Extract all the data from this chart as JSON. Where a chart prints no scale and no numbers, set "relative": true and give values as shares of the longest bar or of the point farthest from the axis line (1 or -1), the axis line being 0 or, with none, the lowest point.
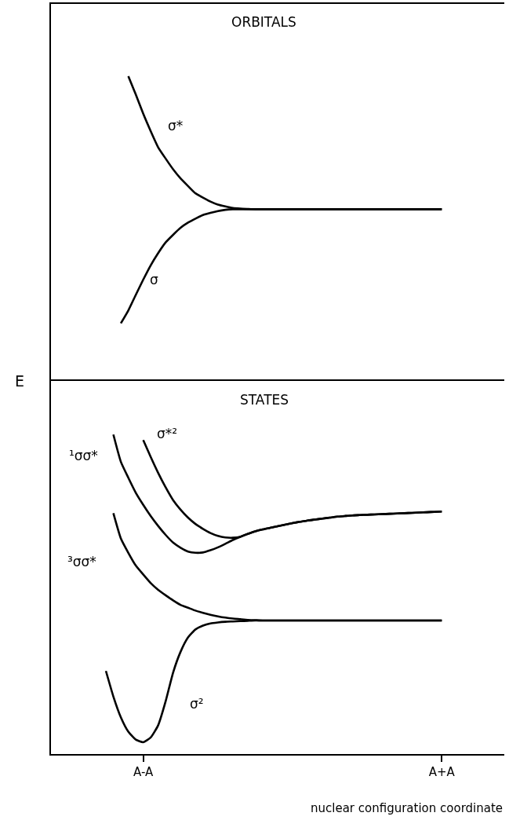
{
  "chart_data": [
    {
      "type": "line",
      "title": "ORBITALS",
      "relative": true,
      "categories": [
        null,
        null,
        null,
        null,
        null,
        null,
        null,
        null,
        null,
        null,
        null,
        null,
        null,
        null,
        null,
        null,
        null,
        null,
        null,
        null,
        null,
        null,
        null,
        null,
        null,
        null,
        null,
        null,
        null,
        null,
        null,
        null,
        null,
        null,
        null,
        null,
        null,
        null,
        null,
        null,
        null,
        null,
        null,
        null,
        null,
        null
      ],
      "series": [
        {
          "name": "σ*",
          "color": "#000000",
          "values": [
            null,
            null,
            null,
            1.0,
            0.94,
            0.877,
            0.82,
            0.767,
            0.73,
            0.695,
            0.665,
            0.64,
            0.616,
            0.602,
            0.589,
            0.579,
            0.573,
            0.568,
            0.566,
            0.565,
            0.564,
            0.564,
            0.564,
            0.564,
            0.564,
            0.564,
            0.564,
            0.564,
            0.564,
            0.564,
            0.564,
            0.564,
            0.564,
            0.564,
            0.564,
            0.564,
            0.564,
            0.564,
            0.564,
            0.564,
            0.564,
            0.564,
            0.564,
            0.564,
            0.564,
            0.564
          ]
        },
        {
          "name": "σ",
          "color": "#000000",
          "values": [
            null,
            null,
            0.19,
            0.232,
            0.283,
            0.333,
            0.38,
            0.42,
            0.455,
            0.48,
            0.503,
            0.52,
            0.533,
            0.545,
            0.552,
            0.558,
            0.562,
            0.564,
            0.564,
            0.564,
            0.564,
            0.564,
            0.564,
            0.564,
            0.564,
            0.564,
            0.564,
            0.564,
            0.564,
            0.564,
            0.564,
            0.564,
            0.564,
            0.564,
            0.564,
            0.564,
            0.564,
            0.564,
            0.564,
            0.564,
            0.564,
            0.564,
            0.564,
            0.564,
            0.564,
            0.564
          ]
        }
      ]
    },
    {
      "type": "line",
      "title": "STATES",
      "ylabel": "E",
      "xlabel": "nuclear configuration coordinate",
      "relative": true,
      "categories": [
        null,
        null,
        null,
        null,
        null,
        "A-A",
        null,
        null,
        null,
        null,
        null,
        null,
        null,
        null,
        null,
        null,
        null,
        null,
        null,
        null,
        null,
        null,
        null,
        null,
        null,
        null,
        null,
        null,
        null,
        null,
        null,
        null,
        null,
        null,
        null,
        null,
        null,
        null,
        null,
        null,
        null,
        null,
        null,
        null,
        null,
        "A+A"
      ],
      "series": [
        {
          "name": "¹σσ*",
          "color": "#000000",
          "values": [
            null,
            1.0,
            0.915,
            0.865,
            0.818,
            0.78,
            0.745,
            0.714,
            0.686,
            0.662,
            0.646,
            0.634,
            0.63,
            0.631,
            0.638,
            0.647,
            0.658,
            0.67,
            0.68,
            0.689,
            0.697,
            0.703,
            0.708,
            0.713,
            0.718,
            0.723,
            0.727,
            0.731,
            0.734,
            0.737,
            0.74,
            0.743,
            0.745,
            0.747,
            0.748,
            0.749,
            0.75,
            0.751,
            0.752,
            0.753,
            0.754,
            0.755,
            0.756,
            0.757,
            0.758,
            0.759
          ]
        },
        {
          "name": "σ*²",
          "color": "#000000",
          "values": [
            null,
            null,
            null,
            null,
            null,
            0.983,
            0.93,
            0.88,
            0.835,
            0.795,
            0.765,
            0.74,
            0.72,
            0.705,
            0.692,
            0.683,
            0.678,
            0.677,
            0.68,
            0.689,
            0.697,
            0.703,
            0.708,
            0.713,
            0.718,
            0.723,
            0.727,
            0.731,
            0.734,
            0.737,
            0.74,
            0.743,
            0.745,
            0.747,
            0.748,
            0.749,
            0.75,
            0.751,
            0.752,
            0.753,
            0.754,
            0.755,
            0.756,
            0.757,
            0.758,
            0.759
          ]
        },
        {
          "name": "³σσ*",
          "color": "#000000",
          "values": [
            null,
            0.754,
            0.675,
            0.63,
            0.59,
            0.562,
            0.535,
            0.514,
            0.497,
            0.481,
            0.467,
            0.458,
            0.449,
            0.442,
            0.436,
            0.431,
            0.427,
            0.424,
            0.422,
            0.42,
            0.419,
            0.418,
            0.418,
            0.418,
            0.418,
            0.418,
            0.418,
            0.418,
            0.418,
            0.418,
            0.418,
            0.418,
            0.418,
            0.418,
            0.418,
            0.418,
            0.418,
            0.418,
            0.418,
            0.418,
            0.418,
            0.418,
            0.418,
            0.418,
            0.418,
            0.418
          ]
        },
        {
          "name": "σ²",
          "color": "#000000",
          "values": [
            0.26,
            0.18,
            0.115,
            0.07,
            0.045,
            0.037,
            0.052,
            0.09,
            0.165,
            0.255,
            0.32,
            0.365,
            0.39,
            0.402,
            0.409,
            0.412,
            0.414,
            0.415,
            0.416,
            0.417,
            0.418,
            0.418,
            0.418,
            0.418,
            0.418,
            0.418,
            0.418,
            0.418,
            0.418,
            0.418,
            0.418,
            0.418,
            0.418,
            0.418,
            0.418,
            0.418,
            0.418,
            0.418,
            0.418,
            0.418,
            0.418,
            0.418,
            0.418,
            0.418,
            0.418,
            0.418
          ]
        }
      ]
    }
  ]
}
